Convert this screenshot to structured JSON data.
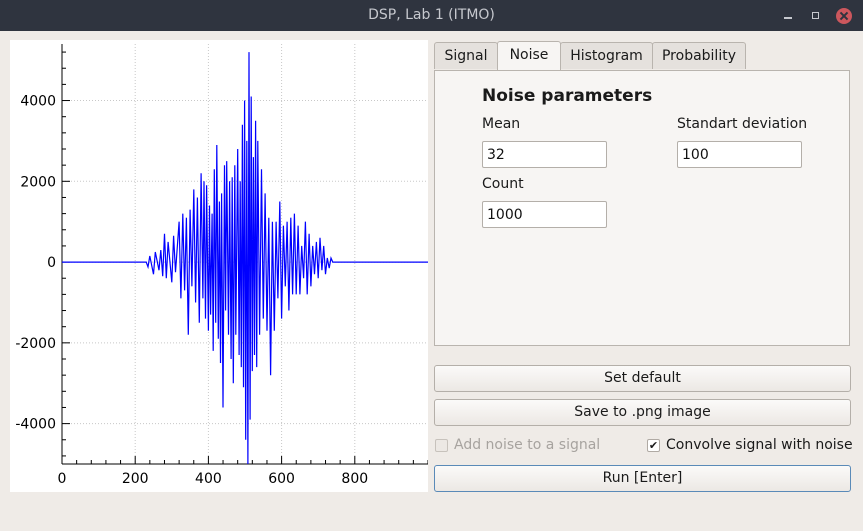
{
  "window": {
    "title": "DSP, Lab 1 (ITMO)"
  },
  "tabs": [
    {
      "label": "Signal",
      "active": false
    },
    {
      "label": "Noise",
      "active": true
    },
    {
      "label": "Histogram",
      "active": false
    },
    {
      "label": "Probability",
      "active": false
    }
  ],
  "noise_panel": {
    "heading": "Noise parameters",
    "mean": {
      "label": "Mean",
      "value": "32"
    },
    "std": {
      "label": "Standart deviation",
      "value": "100"
    },
    "count": {
      "label": "Count",
      "value": "1000"
    }
  },
  "buttons": {
    "set_default": "Set default",
    "save_png": "Save to .png image",
    "run": "Run [Enter]"
  },
  "options": {
    "add_noise": {
      "label": "Add noise to a signal",
      "checked": false,
      "enabled": false
    },
    "convolve": {
      "label": "Convolve signal with noise",
      "checked": true,
      "enabled": true
    }
  },
  "colors": {
    "signal_line": "#0000ff",
    "grid": "#c8c8c8",
    "close_button": "#cc575d"
  },
  "chart_data": {
    "type": "line",
    "title": "",
    "xlabel": "",
    "ylabel": "",
    "xlim": [
      0,
      1000
    ],
    "ylim": [
      -5000,
      5400
    ],
    "x_ticks": [
      0,
      200,
      400,
      600,
      800
    ],
    "y_ticks": [
      -4000,
      -2000,
      0,
      2000,
      4000
    ],
    "grid": true,
    "series": [
      {
        "description": "convolved signal, points (sample index, amplitude)",
        "points": [
          [
            0,
            0
          ],
          [
            230,
            0
          ],
          [
            235,
            -120
          ],
          [
            240,
            150
          ],
          [
            250,
            -300
          ],
          [
            255,
            250
          ],
          [
            265,
            -200
          ],
          [
            270,
            300
          ],
          [
            275,
            -350
          ],
          [
            280,
            700
          ],
          [
            285,
            -400
          ],
          [
            290,
            500
          ],
          [
            300,
            -500
          ],
          [
            305,
            650
          ],
          [
            310,
            -250
          ],
          [
            320,
            1000
          ],
          [
            325,
            -900
          ],
          [
            330,
            1200
          ],
          [
            335,
            -700
          ],
          [
            340,
            1100
          ],
          [
            345,
            -1800
          ],
          [
            350,
            1300
          ],
          [
            355,
            -600
          ],
          [
            360,
            1800
          ],
          [
            365,
            -1000
          ],
          [
            370,
            1600
          ],
          [
            375,
            -1500
          ],
          [
            380,
            2200
          ],
          [
            385,
            -900
          ],
          [
            388,
            2000
          ],
          [
            392,
            -1400
          ],
          [
            395,
            1900
          ],
          [
            400,
            -1700
          ],
          [
            403,
            1400
          ],
          [
            406,
            -1300
          ],
          [
            410,
            1200
          ],
          [
            413,
            -2200
          ],
          [
            416,
            2300
          ],
          [
            420,
            -1500
          ],
          [
            423,
            2900
          ],
          [
            427,
            -1900
          ],
          [
            430,
            1500
          ],
          [
            433,
            -2500
          ],
          [
            436,
            1700
          ],
          [
            440,
            -3600
          ],
          [
            444,
            2400
          ],
          [
            447,
            -1200
          ],
          [
            450,
            2500
          ],
          [
            455,
            -1800
          ],
          [
            458,
            2000
          ],
          [
            462,
            -2400
          ],
          [
            465,
            2100
          ],
          [
            468,
            -3000
          ],
          [
            472,
            2400
          ],
          [
            475,
            -1800
          ],
          [
            480,
            2800
          ],
          [
            484,
            -2300
          ],
          [
            487,
            2000
          ],
          [
            490,
            -2600
          ],
          [
            493,
            3400
          ],
          [
            496,
            -3100
          ],
          [
            499,
            4000
          ],
          [
            502,
            -4400
          ],
          [
            505,
            3000
          ],
          [
            508,
            -5000
          ],
          [
            511,
            5200
          ],
          [
            514,
            -3900
          ],
          [
            517,
            4100
          ],
          [
            520,
            -2700
          ],
          [
            523,
            2600
          ],
          [
            526,
            -2300
          ],
          [
            529,
            3500
          ],
          [
            532,
            -2600
          ],
          [
            535,
            3000
          ],
          [
            540,
            -1800
          ],
          [
            545,
            2300
          ],
          [
            550,
            -1400
          ],
          [
            555,
            1700
          ],
          [
            560,
            -1700
          ],
          [
            565,
            1100
          ],
          [
            570,
            -2800
          ],
          [
            575,
            1000
          ],
          [
            580,
            -1700
          ],
          [
            585,
            1000
          ],
          [
            590,
            -900
          ],
          [
            595,
            1500
          ],
          [
            600,
            -1400
          ],
          [
            605,
            900
          ],
          [
            610,
            -600
          ],
          [
            615,
            1000
          ],
          [
            620,
            -1200
          ],
          [
            625,
            1100
          ],
          [
            630,
            -800
          ],
          [
            635,
            1200
          ],
          [
            640,
            -800
          ],
          [
            645,
            900
          ],
          [
            650,
            -800
          ],
          [
            655,
            400
          ],
          [
            660,
            -400
          ],
          [
            665,
            1000
          ],
          [
            670,
            -800
          ],
          [
            675,
            700
          ],
          [
            680,
            -600
          ],
          [
            685,
            400
          ],
          [
            690,
            -300
          ],
          [
            695,
            500
          ],
          [
            700,
            -400
          ],
          [
            705,
            600
          ],
          [
            710,
            -200
          ],
          [
            715,
            400
          ],
          [
            720,
            -300
          ],
          [
            725,
            100
          ],
          [
            730,
            -150
          ],
          [
            735,
            100
          ],
          [
            740,
            0
          ],
          [
            1000,
            0
          ]
        ]
      }
    ]
  }
}
